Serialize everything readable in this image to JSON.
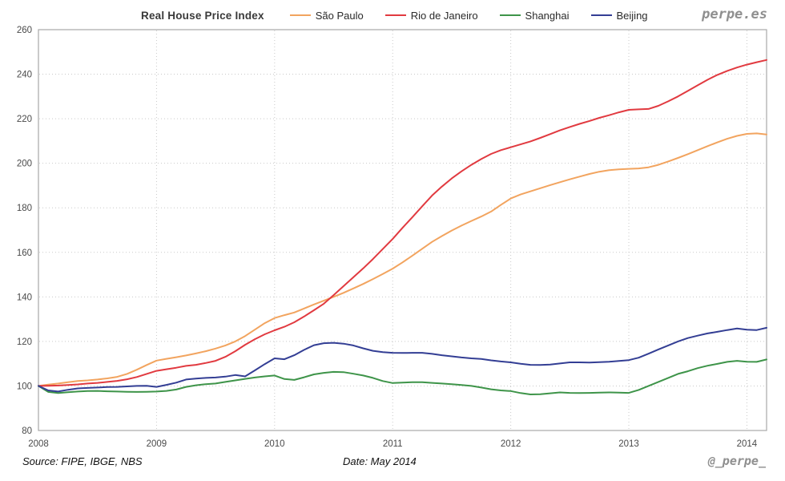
{
  "header": {
    "title": "Real House Price Index",
    "watermark": "perpe.es"
  },
  "footer": {
    "source": "Source: FIPE, IBGE, NBS",
    "date": "Date: May 2014",
    "handle": "@_perpe_"
  },
  "chart_data": {
    "type": "line",
    "title": "Real House Price Index",
    "x_start": "2008-01",
    "x_interval": "monthly",
    "x_tick_labels": [
      "2008",
      "2009",
      "2010",
      "2011",
      "2012",
      "2013",
      "2014"
    ],
    "y_ticks": [
      80,
      100,
      120,
      140,
      160,
      180,
      200,
      220,
      240,
      260
    ],
    "ylim": [
      80,
      260
    ],
    "grid": true,
    "legend_position": "top",
    "axis_color": "#a8a8a8",
    "grid_color": "#c9c9c9",
    "tick_label_color": "#4a4a4a",
    "series": [
      {
        "name": "São Paulo",
        "color": "#F2A45F",
        "values": [
          100,
          100.6,
          101.1,
          101.7,
          102.2,
          102.5,
          102.9,
          103.4,
          104.1,
          105.4,
          107.3,
          109.4,
          111.4,
          112.2,
          112.9,
          113.7,
          114.6,
          115.6,
          116.8,
          118.2,
          120,
          122.4,
          125.3,
          128.2,
          130.5,
          131.8,
          133,
          134.8,
          136.6,
          138.3,
          140,
          141.8,
          143.8,
          145.8,
          148,
          150.3,
          152.7,
          155.5,
          158.5,
          161.6,
          164.7,
          167.3,
          169.8,
          172,
          174.1,
          176.1,
          178.3,
          181.3,
          184.2,
          186,
          187.4,
          188.8,
          190.2,
          191.5,
          192.8,
          194,
          195.2,
          196.2,
          196.9,
          197.3,
          197.5,
          197.7,
          198.2,
          199.3,
          200.8,
          202.4,
          204.1,
          205.9,
          207.7,
          209.4,
          211,
          212.3,
          213.2,
          213.4,
          212.9
        ]
      },
      {
        "name": "Rio de Janeiro",
        "color": "#E13A40",
        "values": [
          100,
          100.1,
          100.2,
          100.4,
          100.7,
          101.1,
          101.4,
          101.8,
          102.3,
          103,
          104,
          105.4,
          106.8,
          107.5,
          108.2,
          109,
          109.5,
          110.3,
          111.3,
          113.1,
          115.6,
          118.5,
          121,
          123.2,
          125,
          126.6,
          128.6,
          131.2,
          134,
          136.9,
          140.8,
          144.8,
          148.8,
          152.8,
          157,
          161.5,
          166,
          171,
          175.8,
          180.7,
          185.5,
          189.5,
          193.2,
          196.4,
          199.3,
          201.9,
          204.2,
          205.9,
          207.2,
          208.5,
          209.8,
          211.4,
          213.1,
          214.8,
          216.3,
          217.7,
          219,
          220.4,
          221.6,
          222.9,
          224,
          224.2,
          224.4,
          225.8,
          227.8,
          230,
          232.5,
          235,
          237.5,
          239.7,
          241.5,
          243,
          244.3,
          245.4,
          246.4
        ]
      },
      {
        "name": "Shanghai",
        "color": "#3E9449",
        "values": [
          100,
          97.3,
          96.8,
          97.2,
          97.5,
          97.7,
          97.8,
          97.6,
          97.5,
          97.4,
          97.3,
          97.4,
          97.5,
          97.8,
          98.4,
          99.6,
          100.3,
          100.8,
          101.1,
          101.8,
          102.5,
          103.2,
          103.8,
          104.3,
          104.7,
          103.1,
          102.7,
          103.9,
          105.2,
          105.9,
          106.3,
          106.2,
          105.5,
          104.7,
          103.6,
          102.2,
          101.3,
          101.5,
          101.7,
          101.7,
          101.4,
          101.1,
          100.8,
          100.4,
          100,
          99.3,
          98.5,
          98,
          97.7,
          96.8,
          96.2,
          96.3,
          96.7,
          97.1,
          96.9,
          96.8,
          96.9,
          97,
          97.1,
          97,
          96.9,
          98.2,
          100,
          101.8,
          103.6,
          105.4,
          106.6,
          108,
          109.1,
          109.9,
          110.8,
          111.3,
          110.9,
          110.8,
          111.9
        ]
      },
      {
        "name": "Beijing",
        "color": "#333E94",
        "values": [
          100,
          98,
          97.5,
          98.3,
          98.9,
          99.1,
          99.3,
          99.5,
          99.6,
          99.8,
          100,
          100.1,
          99.6,
          100.5,
          101.5,
          102.9,
          103.3,
          103.6,
          103.8,
          104.2,
          104.9,
          104.3,
          107,
          109.8,
          112.4,
          112,
          113.8,
          116.2,
          118.3,
          119.2,
          119.4,
          119,
          118.2,
          116.9,
          115.8,
          115.2,
          114.9,
          114.8,
          114.9,
          114.9,
          114.4,
          113.8,
          113.3,
          112.8,
          112.4,
          112.1,
          111.5,
          111,
          110.6,
          110,
          109.5,
          109.4,
          109.6,
          110.1,
          110.6,
          110.6,
          110.5,
          110.7,
          110.9,
          111.2,
          111.6,
          112.7,
          114.5,
          116.4,
          118.2,
          120,
          121.5,
          122.6,
          123.6,
          124.3,
          125.1,
          125.8,
          125.3,
          125.1,
          126.1
        ]
      }
    ]
  }
}
